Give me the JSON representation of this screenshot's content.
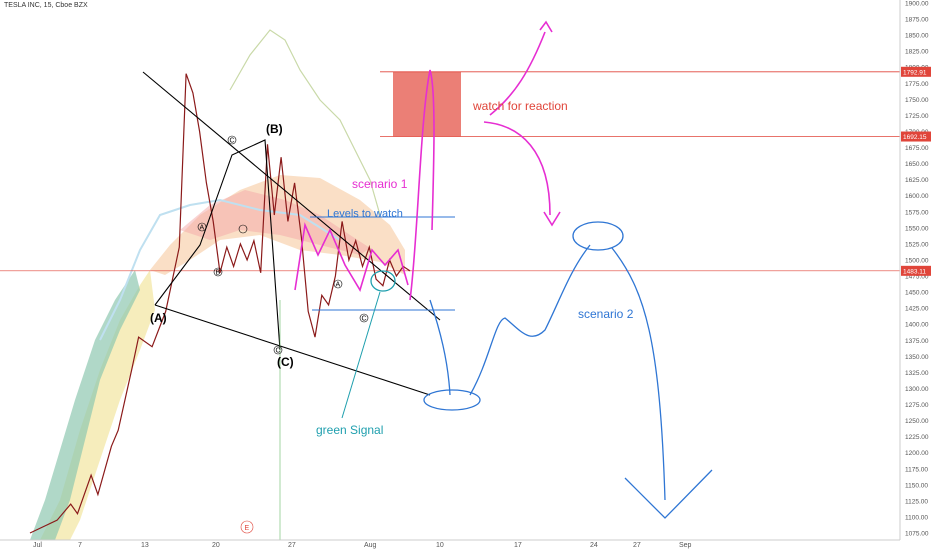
{
  "header": {
    "title": "TESLA INC, 15, Cboe BZX"
  },
  "chart_data": {
    "type": "candlestick",
    "symbol": "TESLA INC",
    "interval": "15",
    "exchange": "Cboe BZX",
    "ylim": [
      1075,
      1900
    ],
    "y_ticks": [
      "1075.00",
      "1100.00",
      "1125.00",
      "1150.00",
      "1175.00",
      "1200.00",
      "1225.00",
      "1250.00",
      "1275.00",
      "1300.00",
      "1325.00",
      "1350.00",
      "1375.00",
      "1400.00",
      "1425.00",
      "1450.00",
      "1475.00",
      "1500.00",
      "1525.00",
      "1550.00",
      "1575.00",
      "1600.00",
      "1625.00",
      "1650.00",
      "1675.00",
      "1700.00",
      "1725.00",
      "1750.00",
      "1775.00",
      "1800.00",
      "1825.00",
      "1850.00",
      "1875.00",
      "1900.00"
    ],
    "x_ticks": [
      "Jul",
      "7",
      "13",
      "20",
      "27",
      "Aug",
      "10",
      "17",
      "24",
      "27",
      "Sep"
    ],
    "price_labels": [
      {
        "value": 1792.91,
        "text": "1792.91",
        "color": "#e0453a"
      },
      {
        "value": 1692.15,
        "text": "1692.15",
        "color": "#e0453a"
      },
      {
        "value": 1483.11,
        "text": "1483.11",
        "color": "#e0453a"
      }
    ],
    "price_path": [
      [
        0,
        1075
      ],
      [
        4,
        1095
      ],
      [
        6,
        1120
      ],
      [
        7,
        1105
      ],
      [
        9,
        1165
      ],
      [
        10,
        1135
      ],
      [
        12,
        1210
      ],
      [
        13,
        1235
      ],
      [
        15,
        1330
      ],
      [
        16,
        1380
      ],
      [
        18,
        1365
      ],
      [
        20,
        1420
      ],
      [
        21,
        1470
      ],
      [
        22,
        1520
      ],
      [
        23,
        1790
      ],
      [
        24,
        1760
      ],
      [
        25,
        1700
      ],
      [
        26,
        1620
      ],
      [
        27,
        1560
      ],
      [
        28,
        1480
      ],
      [
        29,
        1520
      ],
      [
        30,
        1490
      ],
      [
        31,
        1525
      ],
      [
        32,
        1500
      ],
      [
        33,
        1530
      ],
      [
        34,
        1480
      ],
      [
        35,
        1680
      ],
      [
        36,
        1570
      ],
      [
        37,
        1660
      ],
      [
        38,
        1560
      ],
      [
        39,
        1620
      ],
      [
        40,
        1535
      ],
      [
        41,
        1420
      ],
      [
        42,
        1380
      ],
      [
        43,
        1445
      ],
      [
        44,
        1430
      ],
      [
        45,
        1475
      ],
      [
        46,
        1560
      ],
      [
        47,
        1500
      ],
      [
        48,
        1530
      ],
      [
        49,
        1490
      ],
      [
        50,
        1520
      ],
      [
        51,
        1470
      ],
      [
        52,
        1460
      ],
      [
        53,
        1500
      ],
      [
        54,
        1475
      ],
      [
        55,
        1490
      ],
      [
        56,
        1483
      ]
    ],
    "annotations": {
      "zone_label": "watch for reaction",
      "scenario1": "scenario 1",
      "scenario2": "scenario 2",
      "levels_label": "Levels to watch",
      "signal_label": "green Signal",
      "wave_A": "(A)",
      "wave_B": "(B)",
      "wave_C": "(C)",
      "circle_a": "A",
      "circle_b": "B",
      "circle_c": "C",
      "circle_e": "E"
    },
    "colors": {
      "zone_fill": "#e8685e",
      "zone_line": "#e0453a",
      "scenario1": "#e62ed2",
      "scenario2": "#2f76d4",
      "signal": "#1f9fae",
      "current_price_line": "#e0453a",
      "wave": "#000000"
    },
    "grid": false
  }
}
